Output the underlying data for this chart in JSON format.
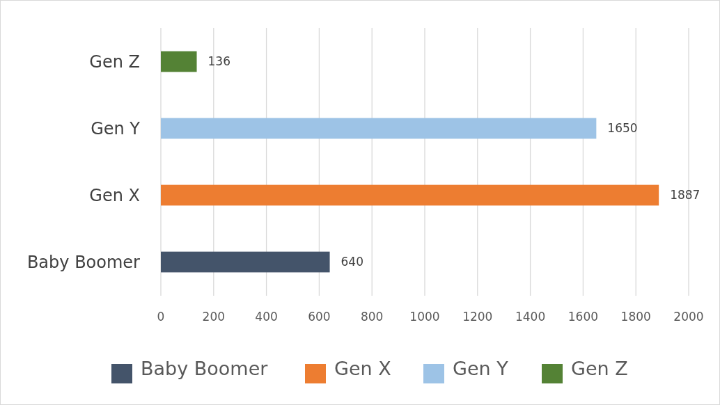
{
  "chart_data": {
    "type": "bar",
    "orientation": "horizontal",
    "categories": [
      "Gen Z",
      "Gen Y",
      "Gen X",
      "Baby Boomer"
    ],
    "series": [
      {
        "name": "Baby Boomer",
        "color": "#44546a",
        "values": [
          null,
          null,
          null,
          640
        ]
      },
      {
        "name": "Gen X",
        "color": "#ed7d31",
        "values": [
          null,
          null,
          1887,
          null
        ]
      },
      {
        "name": "Gen Y",
        "color": "#9dc3e6",
        "values": [
          null,
          1650,
          null,
          null
        ]
      },
      {
        "name": "Gen Z",
        "color": "#548235",
        "values": [
          136,
          null,
          null,
          null
        ]
      }
    ],
    "xlim": [
      0,
      2000
    ],
    "xticks": [
      0,
      200,
      400,
      600,
      800,
      1000,
      1200,
      1400,
      1600,
      1800,
      2000
    ],
    "grid": "x",
    "data_labels": true,
    "legend": "bottom"
  }
}
